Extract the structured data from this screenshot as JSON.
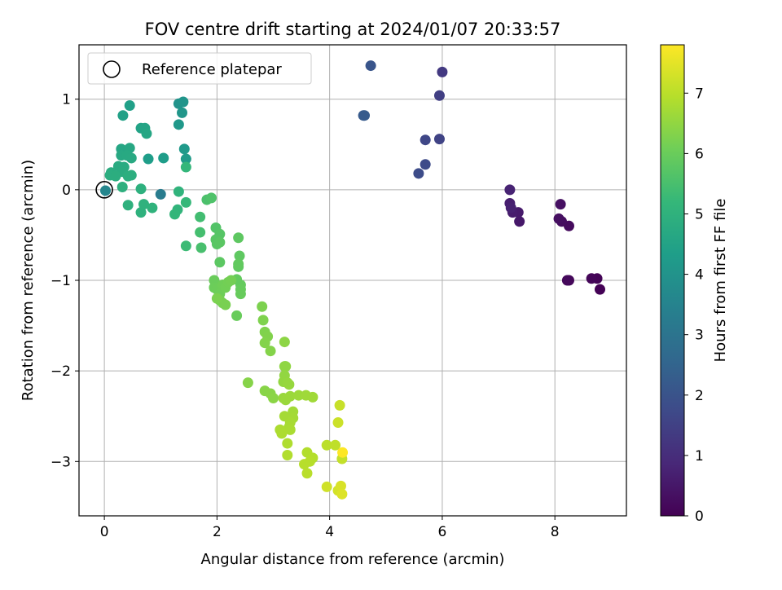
{
  "chart_data": {
    "type": "scatter",
    "title": "FOV centre drift starting at 2024/01/07 20:33:57",
    "xlabel": "Angular distance from reference (arcmin)",
    "ylabel": "Rotation from reference (arcmin)",
    "xlim": [
      -0.45,
      9.27
    ],
    "ylim": [
      -3.6,
      1.6
    ],
    "xticks": [
      0,
      2,
      4,
      6,
      8
    ],
    "yticks": [
      1,
      0,
      -1,
      -2,
      -3
    ],
    "xtick_labels": [
      "0",
      "2",
      "4",
      "6",
      "8"
    ],
    "ytick_labels": [
      "1",
      "0",
      "−1",
      "−2",
      "−3"
    ],
    "grid": true,
    "legend": {
      "position": "top-left",
      "entries": [
        "Reference platepar"
      ]
    },
    "reference_point": {
      "x": 0,
      "y": 0
    },
    "colorbar": {
      "label": "Hours from first FF file",
      "colormap": "viridis",
      "range": [
        0,
        7.8
      ],
      "ticks": [
        0,
        1,
        2,
        3,
        4,
        5,
        6,
        7
      ],
      "tick_labels": [
        "0",
        "1",
        "2",
        "3",
        "4",
        "5",
        "6",
        "7"
      ]
    },
    "colormap_stops": [
      "#440154",
      "#482878",
      "#3e4a89",
      "#31688e",
      "#26828e",
      "#1f9e89",
      "#35b779",
      "#6ece58",
      "#b5de2b",
      "#fde725"
    ],
    "points": [
      {
        "x": 8.8,
        "y": -1.1,
        "t": 0.02
      },
      {
        "x": 8.75,
        "y": -0.98,
        "t": 0.06
      },
      {
        "x": 8.65,
        "y": -0.98,
        "t": 0.1
      },
      {
        "x": 8.25,
        "y": -1.0,
        "t": 0.15
      },
      {
        "x": 8.22,
        "y": -1.0,
        "t": 0.18
      },
      {
        "x": 8.25,
        "y": -0.4,
        "t": 0.22
      },
      {
        "x": 8.12,
        "y": -0.35,
        "t": 0.26
      },
      {
        "x": 8.07,
        "y": -0.32,
        "t": 0.3
      },
      {
        "x": 8.1,
        "y": -0.16,
        "t": 0.34
      },
      {
        "x": 7.37,
        "y": -0.35,
        "t": 0.5
      },
      {
        "x": 7.35,
        "y": -0.25,
        "t": 0.55
      },
      {
        "x": 7.25,
        "y": -0.25,
        "t": 0.6
      },
      {
        "x": 7.2,
        "y": -0.15,
        "t": 0.65
      },
      {
        "x": 7.22,
        "y": -0.2,
        "t": 0.7
      },
      {
        "x": 7.2,
        "y": 0.0,
        "t": 0.75
      },
      {
        "x": 6.0,
        "y": 1.3,
        "t": 1.3
      },
      {
        "x": 5.95,
        "y": 1.04,
        "t": 1.45
      },
      {
        "x": 5.95,
        "y": 0.56,
        "t": 1.55
      },
      {
        "x": 5.7,
        "y": 0.55,
        "t": 1.65
      },
      {
        "x": 5.7,
        "y": 0.28,
        "t": 1.75
      },
      {
        "x": 5.58,
        "y": 0.18,
        "t": 1.8
      },
      {
        "x": 4.73,
        "y": 1.37,
        "t": 2.05
      },
      {
        "x": 4.6,
        "y": 0.82,
        "t": 2.2
      },
      {
        "x": 4.62,
        "y": 0.82,
        "t": 2.22
      },
      {
        "x": 1.0,
        "y": -0.05,
        "t": 3.25
      },
      {
        "x": 0.02,
        "y": -0.01,
        "t": 3.6
      },
      {
        "x": 1.32,
        "y": 0.95,
        "t": 4.0
      },
      {
        "x": 1.4,
        "y": 0.97,
        "t": 4.05
      },
      {
        "x": 1.38,
        "y": 0.85,
        "t": 4.1
      },
      {
        "x": 1.32,
        "y": 0.72,
        "t": 4.15
      },
      {
        "x": 1.42,
        "y": 0.45,
        "t": 4.2
      },
      {
        "x": 1.45,
        "y": 0.34,
        "t": 4.25
      },
      {
        "x": 1.05,
        "y": 0.35,
        "t": 4.3
      },
      {
        "x": 0.78,
        "y": 0.34,
        "t": 4.35
      },
      {
        "x": 0.45,
        "y": 0.93,
        "t": 4.4
      },
      {
        "x": 0.33,
        "y": 0.82,
        "t": 4.45
      },
      {
        "x": 0.65,
        "y": 0.68,
        "t": 4.5
      },
      {
        "x": 0.72,
        "y": 0.68,
        "t": 4.55
      },
      {
        "x": 0.75,
        "y": 0.62,
        "t": 4.6
      },
      {
        "x": 0.3,
        "y": 0.45,
        "t": 4.62
      },
      {
        "x": 0.45,
        "y": 0.46,
        "t": 4.65
      },
      {
        "x": 0.3,
        "y": 0.38,
        "t": 4.68
      },
      {
        "x": 0.4,
        "y": 0.38,
        "t": 4.7
      },
      {
        "x": 0.48,
        "y": 0.35,
        "t": 4.72
      },
      {
        "x": 0.25,
        "y": 0.26,
        "t": 4.75
      },
      {
        "x": 0.35,
        "y": 0.25,
        "t": 4.78
      },
      {
        "x": 0.32,
        "y": 0.2,
        "t": 4.8
      },
      {
        "x": 0.12,
        "y": 0.19,
        "t": 4.82
      },
      {
        "x": 0.1,
        "y": 0.16,
        "t": 4.84
      },
      {
        "x": 0.2,
        "y": 0.15,
        "t": 4.86
      },
      {
        "x": 0.48,
        "y": 0.16,
        "t": 4.88
      },
      {
        "x": 0.42,
        "y": 0.15,
        "t": 4.9
      },
      {
        "x": 0.32,
        "y": 0.03,
        "t": 4.92
      },
      {
        "x": 0.65,
        "y": 0.01,
        "t": 4.94
      },
      {
        "x": 0.42,
        "y": -0.17,
        "t": 4.96
      },
      {
        "x": 0.65,
        "y": -0.25,
        "t": 4.98
      },
      {
        "x": 0.7,
        "y": -0.16,
        "t": 5.0
      },
      {
        "x": 0.85,
        "y": -0.2,
        "t": 5.02
      },
      {
        "x": 1.32,
        "y": -0.02,
        "t": 5.06
      },
      {
        "x": 1.3,
        "y": -0.22,
        "t": 5.1
      },
      {
        "x": 1.25,
        "y": -0.27,
        "t": 5.12
      },
      {
        "x": 1.45,
        "y": 0.25,
        "t": 5.15
      },
      {
        "x": 1.45,
        "y": -0.14,
        "t": 5.2
      },
      {
        "x": 1.45,
        "y": -0.62,
        "t": 5.3
      },
      {
        "x": 1.7,
        "y": -0.3,
        "t": 5.4
      },
      {
        "x": 1.7,
        "y": -0.47,
        "t": 5.45
      },
      {
        "x": 1.72,
        "y": -0.64,
        "t": 5.5
      },
      {
        "x": 1.82,
        "y": -0.11,
        "t": 5.55
      },
      {
        "x": 1.9,
        "y": -0.09,
        "t": 5.6
      },
      {
        "x": 1.98,
        "y": -0.42,
        "t": 5.65
      },
      {
        "x": 2.05,
        "y": -0.49,
        "t": 5.7
      },
      {
        "x": 1.98,
        "y": -0.55,
        "t": 5.72
      },
      {
        "x": 2.0,
        "y": -0.6,
        "t": 5.75
      },
      {
        "x": 2.05,
        "y": -0.58,
        "t": 5.78
      },
      {
        "x": 2.05,
        "y": -0.8,
        "t": 5.8
      },
      {
        "x": 2.38,
        "y": -0.53,
        "t": 5.82
      },
      {
        "x": 2.4,
        "y": -0.73,
        "t": 5.84
      },
      {
        "x": 2.38,
        "y": -0.85,
        "t": 5.86
      },
      {
        "x": 2.38,
        "y": -0.82,
        "t": 5.88
      },
      {
        "x": 2.35,
        "y": -0.99,
        "t": 5.9
      },
      {
        "x": 2.42,
        "y": -1.05,
        "t": 5.92
      },
      {
        "x": 2.42,
        "y": -1.1,
        "t": 5.94
      },
      {
        "x": 2.42,
        "y": -1.15,
        "t": 5.96
      },
      {
        "x": 2.35,
        "y": -1.39,
        "t": 5.98
      },
      {
        "x": 1.95,
        "y": -1.0,
        "t": 6.0
      },
      {
        "x": 1.95,
        "y": -1.08,
        "t": 6.02
      },
      {
        "x": 2.0,
        "y": -1.1,
        "t": 6.04
      },
      {
        "x": 2.05,
        "y": -1.15,
        "t": 6.06
      },
      {
        "x": 2.1,
        "y": -1.05,
        "t": 6.08
      },
      {
        "x": 2.15,
        "y": -1.08,
        "t": 6.1
      },
      {
        "x": 2.2,
        "y": -1.02,
        "t": 6.12
      },
      {
        "x": 2.25,
        "y": -1.0,
        "t": 6.14
      },
      {
        "x": 2.05,
        "y": -1.22,
        "t": 6.16
      },
      {
        "x": 2.1,
        "y": -1.25,
        "t": 6.18
      },
      {
        "x": 2.15,
        "y": -1.27,
        "t": 6.2
      },
      {
        "x": 2.0,
        "y": -1.2,
        "t": 6.22
      },
      {
        "x": 2.8,
        "y": -1.29,
        "t": 6.24
      },
      {
        "x": 2.82,
        "y": -1.44,
        "t": 6.26
      },
      {
        "x": 2.85,
        "y": -1.57,
        "t": 6.28
      },
      {
        "x": 2.9,
        "y": -1.62,
        "t": 6.3
      },
      {
        "x": 2.85,
        "y": -1.69,
        "t": 6.32
      },
      {
        "x": 2.95,
        "y": -1.78,
        "t": 6.34
      },
      {
        "x": 2.55,
        "y": -2.13,
        "t": 6.36
      },
      {
        "x": 2.85,
        "y": -2.22,
        "t": 6.38
      },
      {
        "x": 2.95,
        "y": -2.25,
        "t": 6.4
      },
      {
        "x": 3.0,
        "y": -2.3,
        "t": 6.42
      },
      {
        "x": 3.2,
        "y": -1.68,
        "t": 6.44
      },
      {
        "x": 3.2,
        "y": -1.95,
        "t": 6.46
      },
      {
        "x": 3.22,
        "y": -1.95,
        "t": 6.48
      },
      {
        "x": 3.2,
        "y": -2.05,
        "t": 6.5
      },
      {
        "x": 3.18,
        "y": -2.12,
        "t": 6.52
      },
      {
        "x": 3.25,
        "y": -2.13,
        "t": 6.54
      },
      {
        "x": 3.28,
        "y": -2.15,
        "t": 6.56
      },
      {
        "x": 3.18,
        "y": -2.3,
        "t": 6.58
      },
      {
        "x": 3.22,
        "y": -2.32,
        "t": 6.6
      },
      {
        "x": 3.3,
        "y": -2.28,
        "t": 6.62
      },
      {
        "x": 3.45,
        "y": -2.27,
        "t": 6.64
      },
      {
        "x": 3.58,
        "y": -2.27,
        "t": 6.66
      },
      {
        "x": 3.7,
        "y": -2.29,
        "t": 6.68
      },
      {
        "x": 3.35,
        "y": -2.45,
        "t": 6.7
      },
      {
        "x": 3.35,
        "y": -2.52,
        "t": 6.72
      },
      {
        "x": 3.2,
        "y": -2.5,
        "t": 6.74
      },
      {
        "x": 3.3,
        "y": -2.57,
        "t": 6.76
      },
      {
        "x": 3.28,
        "y": -2.62,
        "t": 6.78
      },
      {
        "x": 3.3,
        "y": -2.65,
        "t": 6.8
      },
      {
        "x": 3.12,
        "y": -2.65,
        "t": 6.82
      },
      {
        "x": 3.15,
        "y": -2.69,
        "t": 6.84
      },
      {
        "x": 3.25,
        "y": -2.8,
        "t": 6.86
      },
      {
        "x": 3.25,
        "y": -2.93,
        "t": 6.88
      },
      {
        "x": 3.6,
        "y": -2.9,
        "t": 6.9
      },
      {
        "x": 3.7,
        "y": -2.96,
        "t": 6.92
      },
      {
        "x": 3.65,
        "y": -3.0,
        "t": 6.94
      },
      {
        "x": 3.55,
        "y": -3.03,
        "t": 6.96
      },
      {
        "x": 3.6,
        "y": -3.13,
        "t": 6.98
      },
      {
        "x": 3.95,
        "y": -2.82,
        "t": 7.0
      },
      {
        "x": 4.1,
        "y": -2.82,
        "t": 7.05
      },
      {
        "x": 4.22,
        "y": -2.97,
        "t": 7.1
      },
      {
        "x": 4.18,
        "y": -2.38,
        "t": 7.15
      },
      {
        "x": 4.15,
        "y": -2.57,
        "t": 7.2
      },
      {
        "x": 3.95,
        "y": -3.28,
        "t": 7.25
      },
      {
        "x": 4.15,
        "y": -3.32,
        "t": 7.3
      },
      {
        "x": 4.2,
        "y": -3.27,
        "t": 7.35
      },
      {
        "x": 4.22,
        "y": -3.36,
        "t": 7.4
      },
      {
        "x": 4.23,
        "y": -2.9,
        "t": 7.8
      }
    ]
  }
}
